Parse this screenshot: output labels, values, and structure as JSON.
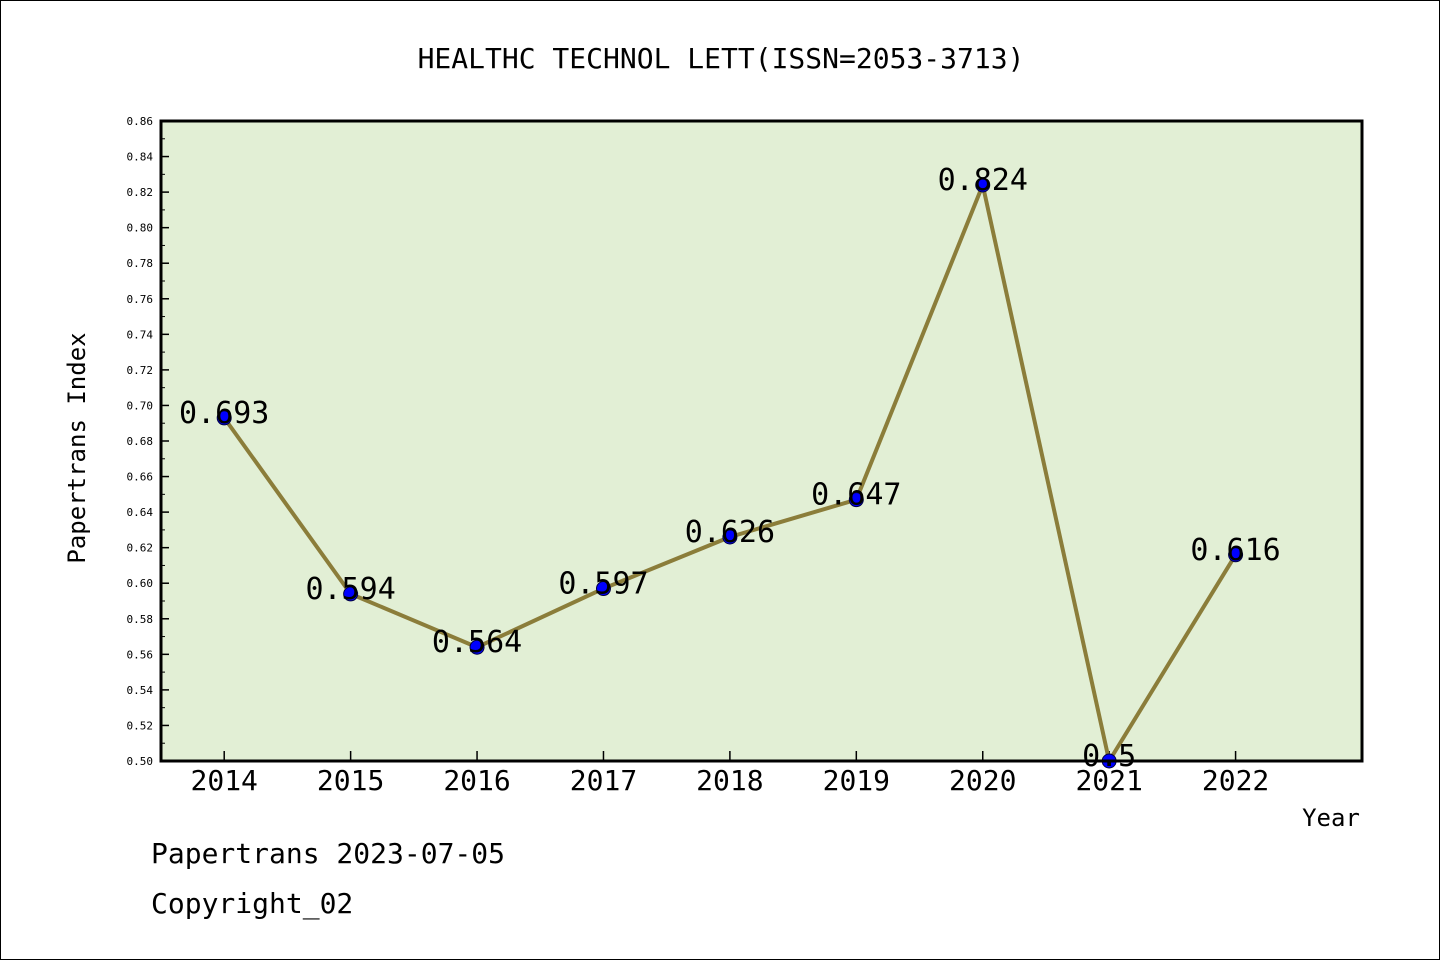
{
  "chart_data": {
    "type": "line",
    "title": "HEALTHC TECHNOL LETT(ISSN=2053-3713)",
    "xlabel": "Year",
    "ylabel": "Papertrans Index",
    "categories": [
      "2014",
      "2015",
      "2016",
      "2017",
      "2018",
      "2019",
      "2020",
      "2021",
      "2022"
    ],
    "values": [
      0.693,
      0.594,
      0.564,
      0.597,
      0.626,
      0.647,
      0.824,
      0.5,
      0.616
    ],
    "data_labels": [
      "0.693",
      "0.594",
      "0.564",
      "0.597",
      "0.626",
      "0.647",
      "0.824",
      "0.5",
      "0.616"
    ],
    "ylim": [
      0.5,
      0.86
    ],
    "yticks": [
      "0.50",
      "0.52",
      "0.54",
      "0.56",
      "0.58",
      "0.60",
      "0.62",
      "0.64",
      "0.66",
      "0.68",
      "0.70",
      "0.72",
      "0.74",
      "0.76",
      "0.78",
      "0.80",
      "0.82",
      "0.84",
      "0.86"
    ],
    "grid": false,
    "colors": {
      "plot_background": "#e2efd5",
      "line": "#8b7d3a",
      "marker": "#0000ff"
    }
  },
  "footer": {
    "line1": "Papertrans 2023-07-05",
    "line2": "Copyright_02"
  }
}
